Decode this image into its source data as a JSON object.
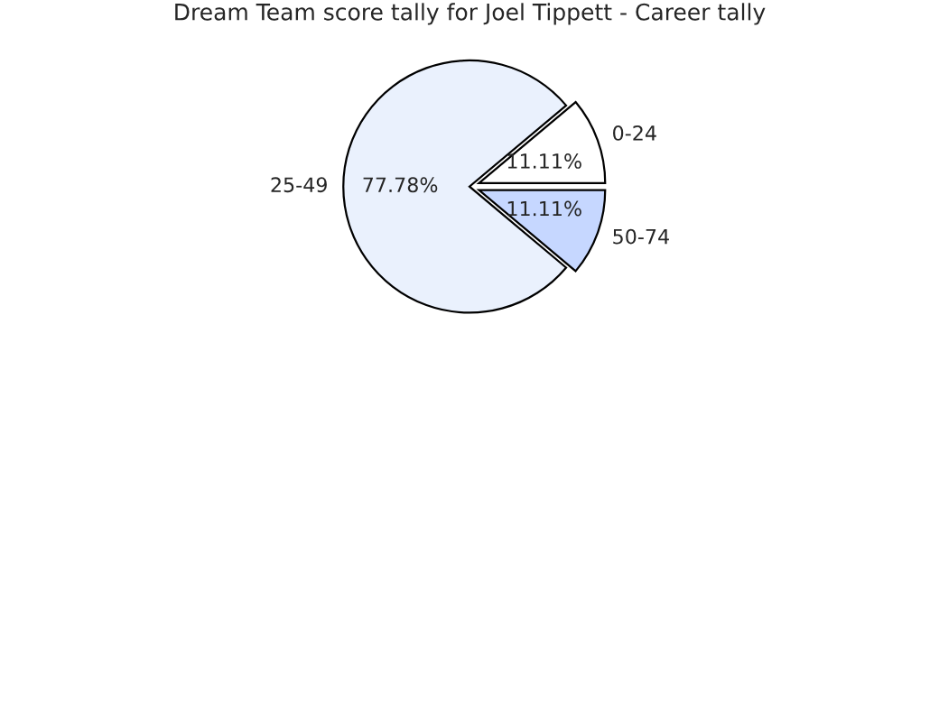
{
  "chart_data": {
    "type": "pie",
    "title": "Dream Team score tally for Joel Tippett - Career tally",
    "categories": [
      "0-24",
      "25-49",
      "50-74"
    ],
    "values": [
      11.11,
      77.78,
      11.11
    ],
    "colors": [
      "#ffffff",
      "#eaf1fd",
      "#c6d7ff"
    ],
    "value_labels": [
      "11.11%",
      "77.78%",
      "11.11%"
    ]
  }
}
